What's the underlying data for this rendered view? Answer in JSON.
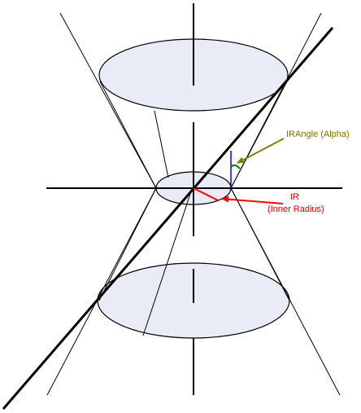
{
  "diagram": {
    "labels": {
      "alpha": "IRAngle (Alpha)",
      "ir_line1": "IR",
      "ir_line2": "(Inner Radius)"
    },
    "colors": {
      "background": "#ffffff",
      "ellipse_fill": "#e9ecf6",
      "stroke": "#000000",
      "alpha_label": "#7a7000",
      "ir_label": "#d40000",
      "alpha_arrow": "#808000",
      "ir_arrow": "#ff0000",
      "angle_arc": "#007a00",
      "vertical_ref": "#0000ff",
      "radius_line": "#ff0000"
    }
  }
}
